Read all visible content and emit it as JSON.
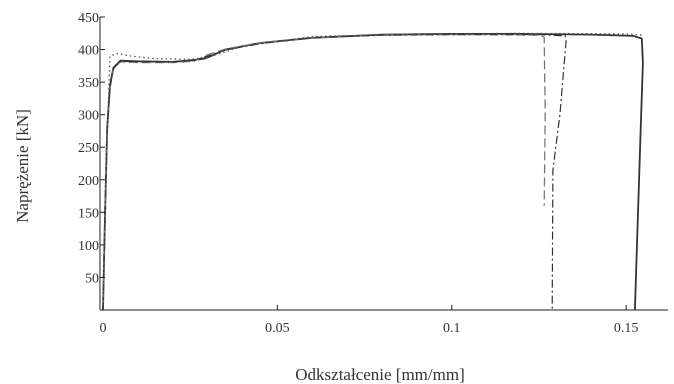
{
  "chart_data": {
    "type": "line",
    "xlabel": "Odkształcenie [mm/mm]",
    "ylabel": "Naprężenie [kN]",
    "xlim": [
      -0.002,
      0.162
    ],
    "ylim": [
      0,
      450
    ],
    "x_ticks": [
      0,
      0.05,
      0.1,
      0.15
    ],
    "x_tick_labels": [
      "0",
      "0.05",
      "0.1",
      "0.15"
    ],
    "y_ticks": [
      50,
      100,
      150,
      200,
      250,
      300,
      350,
      400,
      450
    ],
    "y_tick_labels": [
      "50",
      "100",
      "150",
      "200",
      "250",
      "300",
      "350",
      "400",
      "450"
    ],
    "grid": false,
    "legend": "none",
    "colors": {
      "axis": "#222222",
      "text": "#333333",
      "solid": "#333333",
      "dashed": "#777777",
      "dotted": "#555555"
    },
    "series": [
      {
        "style": "solid",
        "points": [
          [
            0,
            0
          ],
          [
            0.0006,
            150
          ],
          [
            0.0012,
            280
          ],
          [
            0.002,
            345
          ],
          [
            0.003,
            372
          ],
          [
            0.005,
            383
          ],
          [
            0.01,
            382
          ],
          [
            0.02,
            381
          ],
          [
            0.026,
            384
          ],
          [
            0.029,
            386
          ],
          [
            0.031,
            390
          ],
          [
            0.035,
            400
          ],
          [
            0.045,
            410
          ],
          [
            0.06,
            418
          ],
          [
            0.08,
            423
          ],
          [
            0.1,
            424
          ],
          [
            0.12,
            424
          ],
          [
            0.14,
            423
          ],
          [
            0.152,
            421
          ],
          [
            0.1545,
            417
          ],
          [
            0.1548,
            380
          ],
          [
            0.154,
            250
          ],
          [
            0.1525,
            0
          ]
        ]
      },
      {
        "style": "dashed",
        "points": [
          [
            0,
            0
          ],
          [
            0.0005,
            130
          ],
          [
            0.0012,
            270
          ],
          [
            0.002,
            340
          ],
          [
            0.003,
            370
          ],
          [
            0.005,
            381
          ],
          [
            0.01,
            380
          ],
          [
            0.02,
            380
          ],
          [
            0.026,
            382
          ],
          [
            0.03,
            392
          ],
          [
            0.036,
            402
          ],
          [
            0.045,
            410
          ],
          [
            0.06,
            418
          ],
          [
            0.08,
            422
          ],
          [
            0.1,
            423
          ],
          [
            0.115,
            423
          ],
          [
            0.125,
            422
          ],
          [
            0.1265,
            419
          ],
          [
            0.1268,
            300
          ],
          [
            0.1265,
            160
          ]
        ]
      },
      {
        "style": "dashdot",
        "points": [
          [
            0,
            0
          ],
          [
            0.0005,
            140
          ],
          [
            0.0012,
            275
          ],
          [
            0.002,
            343
          ],
          [
            0.003,
            371
          ],
          [
            0.005,
            382
          ],
          [
            0.01,
            381
          ],
          [
            0.02,
            381
          ],
          [
            0.026,
            383
          ],
          [
            0.03,
            390
          ],
          [
            0.035,
            399
          ],
          [
            0.045,
            409
          ],
          [
            0.06,
            418
          ],
          [
            0.08,
            422
          ],
          [
            0.1,
            423
          ],
          [
            0.125,
            423
          ],
          [
            0.1325,
            421
          ],
          [
            0.1328,
            415
          ],
          [
            0.131,
            300
          ],
          [
            0.129,
            215
          ],
          [
            0.1288,
            0
          ]
        ]
      },
      {
        "style": "dotted",
        "points": [
          [
            0,
            0
          ],
          [
            0.001,
            240
          ],
          [
            0.002,
            390
          ],
          [
            0.004,
            394
          ],
          [
            0.008,
            390
          ],
          [
            0.015,
            386
          ],
          [
            0.025,
            385
          ],
          [
            0.03,
            388
          ],
          [
            0.04,
            405
          ],
          [
            0.06,
            420
          ],
          [
            0.09,
            424
          ],
          [
            0.12,
            425
          ],
          [
            0.15,
            424
          ],
          [
            0.155,
            422
          ]
        ]
      }
    ]
  }
}
